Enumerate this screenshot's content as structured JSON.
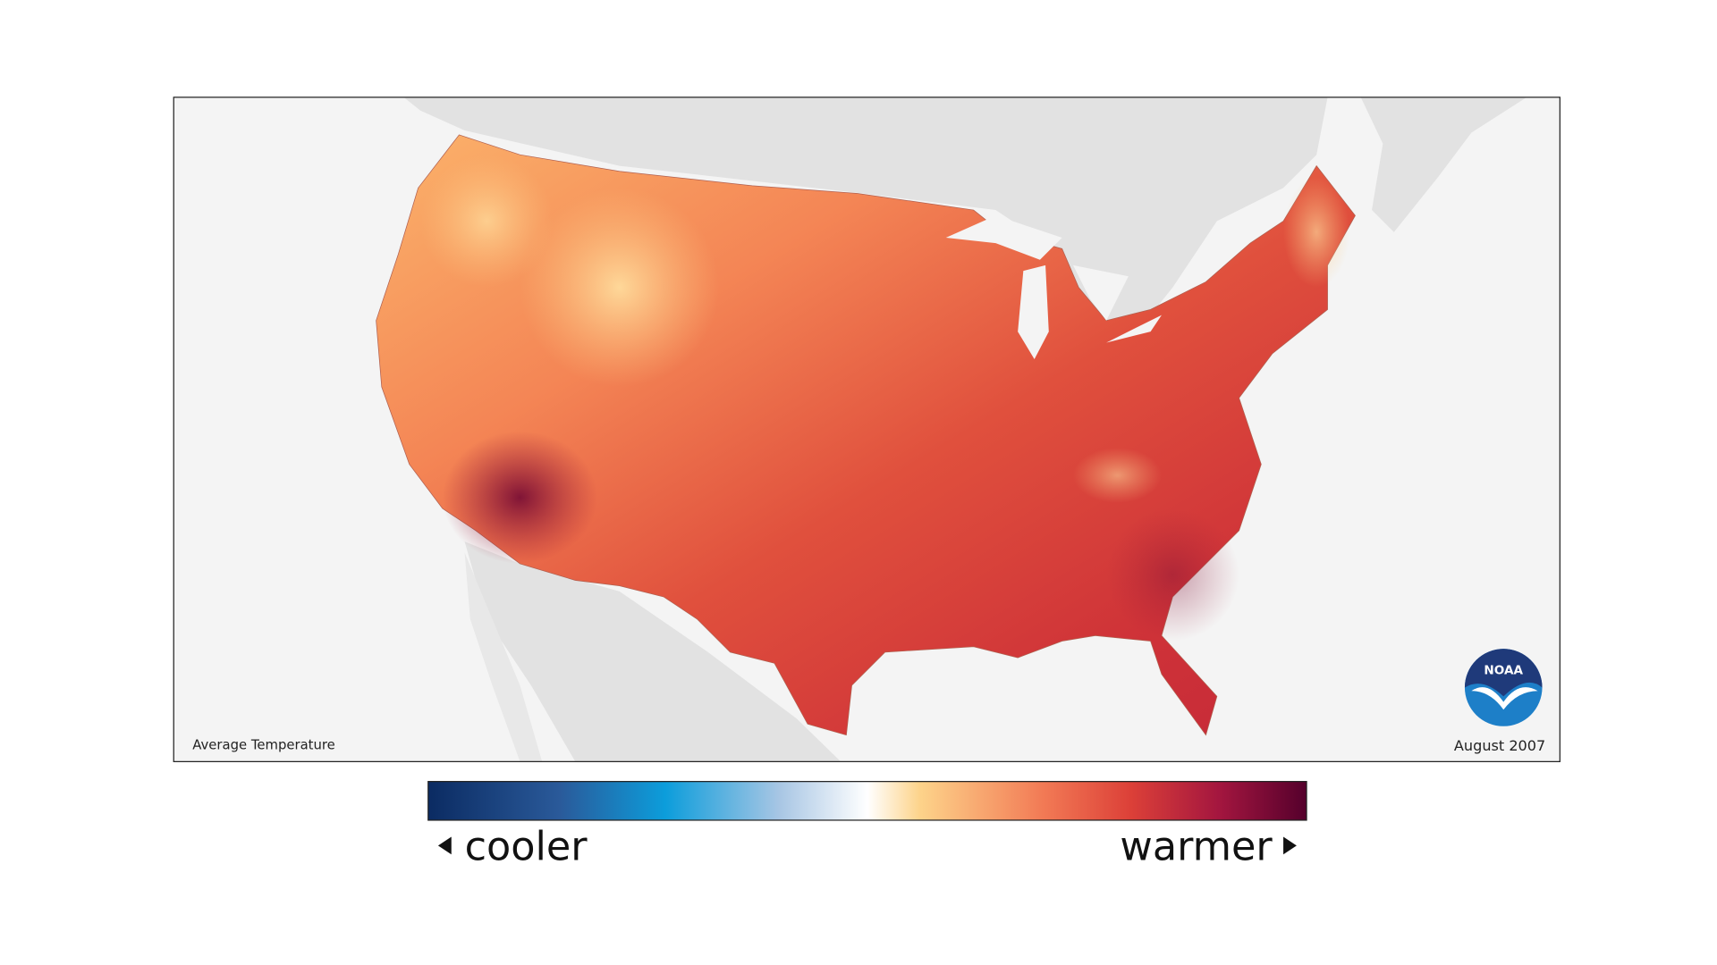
{
  "map": {
    "label": "Average Temperature",
    "date": "August 2007"
  },
  "legend": {
    "low": "cooler",
    "high": "warmer"
  },
  "logo": "NOAA"
}
